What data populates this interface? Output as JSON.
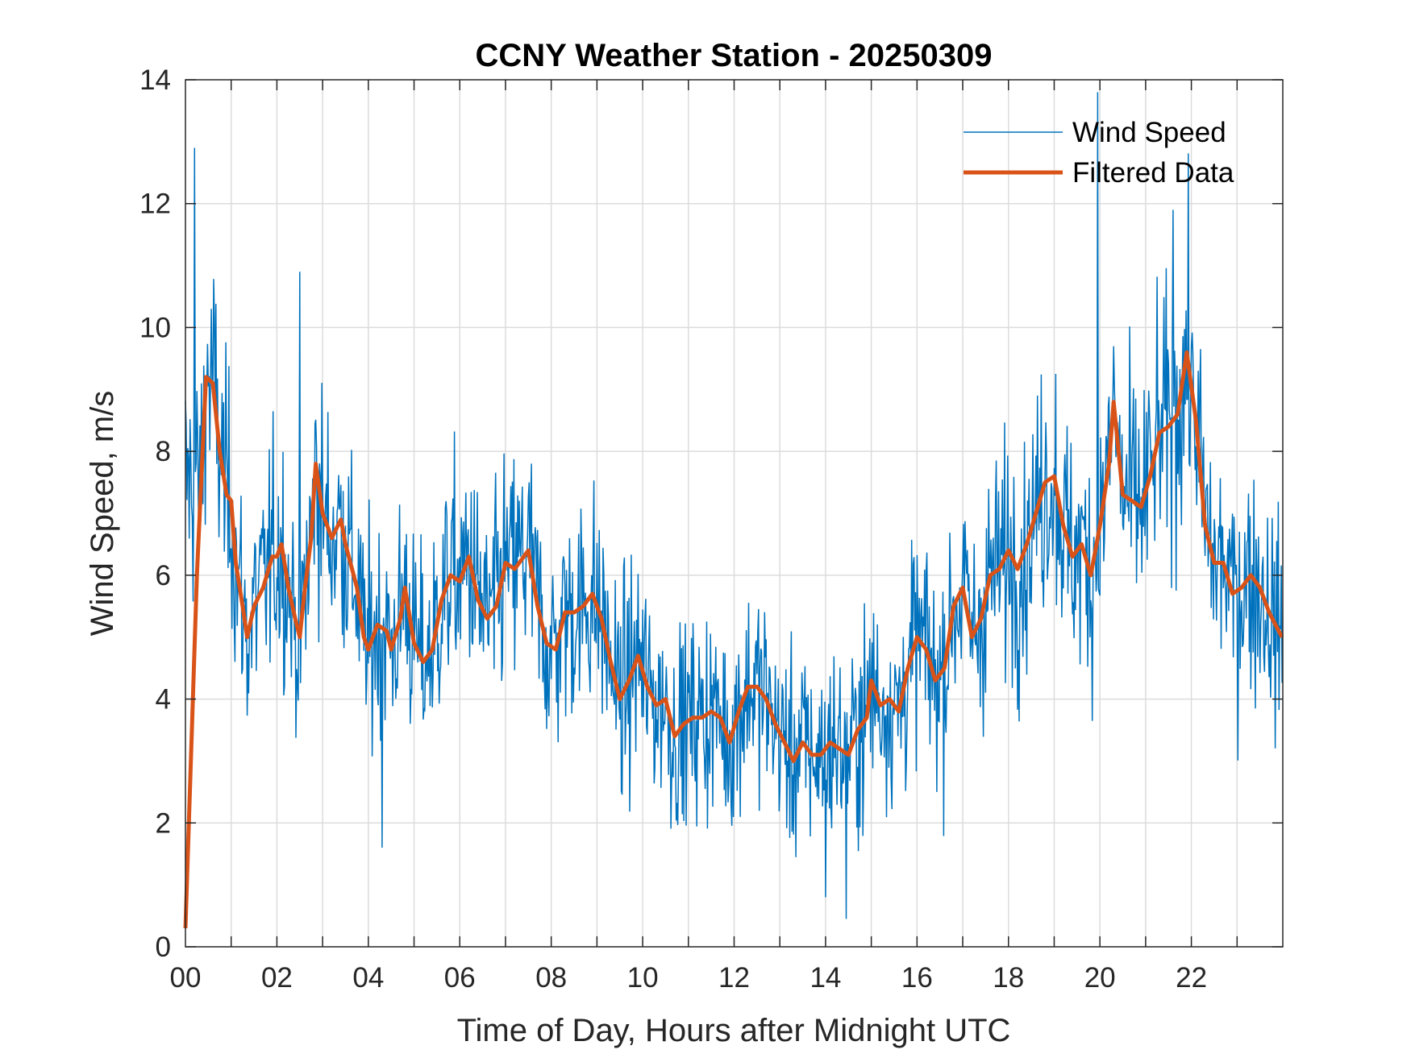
{
  "chart_data": {
    "type": "line",
    "title": "CCNY Weather Station - 20250309",
    "xlabel": "Time of Day, Hours after Midnight UTC",
    "ylabel": "Wind Speed, m/s",
    "xlim": [
      0,
      24
    ],
    "ylim": [
      0,
      14
    ],
    "xticks": [
      0,
      2,
      4,
      6,
      8,
      10,
      12,
      14,
      16,
      18,
      20,
      22
    ],
    "xtick_labels": [
      "00",
      "02",
      "04",
      "06",
      "08",
      "10",
      "12",
      "14",
      "16",
      "18",
      "20",
      "22"
    ],
    "yticks": [
      0,
      2,
      4,
      6,
      8,
      10,
      12,
      14
    ],
    "ytick_labels": [
      "0",
      "2",
      "4",
      "6",
      "8",
      "10",
      "12",
      "14"
    ],
    "grid": true,
    "legend_position": "top-right",
    "series": [
      {
        "name": "Wind Speed",
        "color": "#0072BD",
        "kind": "raw 1-minute samples (approximated as filtered trend plus noise)",
        "sample_interval_hours": 0.016667,
        "noise_std": 1.15,
        "notable_peaks": [
          [
            0.2,
            12.9
          ],
          [
            2.5,
            10.9
          ],
          [
            19.95,
            13.8
          ],
          [
            21.6,
            11.9
          ],
          [
            14.0,
            0.8
          ],
          [
            14.45,
            0.45
          ],
          [
            4.3,
            1.6
          ]
        ]
      },
      {
        "name": "Filtered Data",
        "color": "#D95319",
        "x": [
          0,
          0.25,
          0.45,
          0.6,
          0.75,
          0.9,
          1.0,
          1.1,
          1.25,
          1.35,
          1.5,
          1.7,
          1.9,
          2.0,
          2.1,
          2.25,
          2.4,
          2.5,
          2.6,
          2.75,
          2.85,
          3.0,
          3.2,
          3.4,
          3.5,
          3.75,
          3.9,
          4.0,
          4.2,
          4.4,
          4.5,
          4.7,
          4.8,
          5.0,
          5.2,
          5.4,
          5.6,
          5.8,
          6.0,
          6.2,
          6.4,
          6.6,
          6.8,
          7.0,
          7.2,
          7.4,
          7.5,
          7.7,
          7.9,
          8.1,
          8.3,
          8.5,
          8.7,
          8.9,
          9.1,
          9.3,
          9.5,
          9.7,
          9.9,
          10.1,
          10.3,
          10.5,
          10.7,
          10.9,
          11.1,
          11.3,
          11.5,
          11.7,
          11.9,
          12.1,
          12.3,
          12.5,
          12.7,
          12.9,
          13.1,
          13.3,
          13.5,
          13.7,
          13.9,
          14.1,
          14.3,
          14.5,
          14.7,
          14.9,
          15.0,
          15.2,
          15.4,
          15.6,
          15.8,
          16.0,
          16.2,
          16.4,
          16.6,
          16.8,
          17.0,
          17.2,
          17.4,
          17.6,
          17.8,
          18.0,
          18.2,
          18.4,
          18.6,
          18.8,
          19.0,
          19.2,
          19.4,
          19.6,
          19.8,
          20.0,
          20.2,
          20.3,
          20.5,
          20.7,
          20.9,
          21.1,
          21.3,
          21.5,
          21.7,
          21.9,
          22.1,
          22.3,
          22.5,
          22.7,
          22.9,
          23.1,
          23.3,
          23.5,
          23.7,
          23.98
        ],
        "y": [
          0.3,
          6.0,
          9.2,
          9.1,
          8.0,
          7.3,
          7.2,
          6.2,
          5.5,
          5.0,
          5.5,
          5.8,
          6.3,
          6.3,
          6.5,
          5.8,
          5.3,
          5.0,
          5.7,
          6.6,
          7.8,
          7.0,
          6.6,
          6.9,
          6.5,
          5.8,
          5.0,
          4.8,
          5.2,
          5.1,
          4.8,
          5.3,
          5.8,
          4.9,
          4.6,
          4.8,
          5.6,
          6.0,
          5.9,
          6.3,
          5.6,
          5.3,
          5.5,
          6.2,
          6.1,
          6.3,
          6.4,
          5.5,
          4.9,
          4.8,
          5.4,
          5.4,
          5.5,
          5.7,
          5.3,
          4.6,
          4.0,
          4.3,
          4.7,
          4.2,
          3.9,
          4.0,
          3.4,
          3.6,
          3.7,
          3.7,
          3.8,
          3.7,
          3.3,
          3.8,
          4.2,
          4.2,
          4.0,
          3.6,
          3.3,
          3.0,
          3.3,
          3.1,
          3.1,
          3.3,
          3.2,
          3.1,
          3.5,
          3.7,
          4.3,
          3.9,
          4.0,
          3.8,
          4.5,
          5.0,
          4.8,
          4.3,
          4.5,
          5.5,
          5.8,
          5.0,
          5.3,
          6.0,
          6.1,
          6.4,
          6.1,
          6.5,
          7.0,
          7.5,
          7.6,
          6.8,
          6.3,
          6.5,
          6.0,
          6.8,
          7.8,
          8.8,
          7.3,
          7.2,
          7.1,
          7.6,
          8.3,
          8.4,
          8.6,
          9.6,
          8.5,
          6.8,
          6.2,
          6.2,
          5.7,
          5.8,
          6.0,
          5.8,
          5.4,
          5.0
        ]
      }
    ]
  }
}
